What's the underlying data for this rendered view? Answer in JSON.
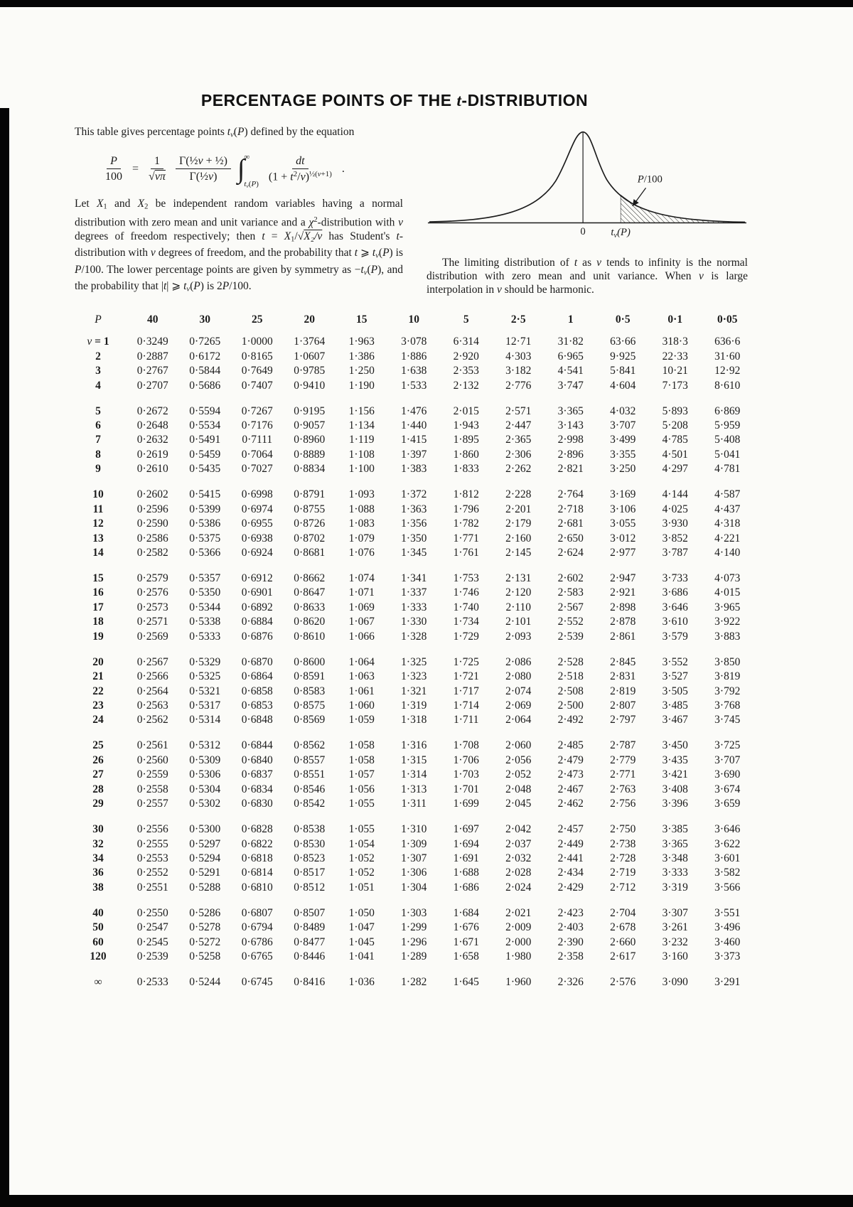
{
  "title": {
    "prefix": "PERCENTAGE POINTS OF THE ",
    "t_italic": "t",
    "suffix": "-DISTRIBUTION"
  },
  "intro": {
    "lead": [
      {
        "t": "This table gives percentage points "
      },
      {
        "t": "t",
        "s": "i"
      },
      {
        "t": "ν",
        "s": "sub i"
      },
      {
        "t": "("
      },
      {
        "t": "P",
        "s": "i"
      },
      {
        "t": ") defined by the equation"
      }
    ],
    "body": [
      {
        "t": "Let "
      },
      {
        "t": "X",
        "s": "i"
      },
      {
        "t": "1",
        "s": "sub"
      },
      {
        "t": " and "
      },
      {
        "t": "X",
        "s": "i"
      },
      {
        "t": "2",
        "s": "sub"
      },
      {
        "t": " be independent random variables having a normal distribution with zero mean and unit variance and a "
      },
      {
        "t": "χ",
        "s": "i"
      },
      {
        "t": "2",
        "s": "sup"
      },
      {
        "t": "-distribution with "
      },
      {
        "t": "ν",
        "s": "i"
      },
      {
        "t": " degrees of freedom respectively; then "
      },
      {
        "t": "t",
        "s": "i"
      },
      {
        "t": " = "
      },
      {
        "t": "X",
        "s": "i"
      },
      {
        "t": "1",
        "s": "sub"
      },
      {
        "t": "/√"
      },
      {
        "t": "X₂/ν",
        "s": "ol i"
      },
      {
        "t": " has Student's "
      },
      {
        "t": "t",
        "s": "i"
      },
      {
        "t": "-distribution with "
      },
      {
        "t": "ν",
        "s": "i"
      },
      {
        "t": " degrees of freedom, and the probability that "
      },
      {
        "t": "t",
        "s": "i"
      },
      {
        "t": " ⩾ "
      },
      {
        "t": "t",
        "s": "i"
      },
      {
        "t": "ν",
        "s": "sub i"
      },
      {
        "t": "("
      },
      {
        "t": "P",
        "s": "i"
      },
      {
        "t": ") is "
      },
      {
        "t": "P",
        "s": "i"
      },
      {
        "t": "/100. The lower percentage points are given by symmetry as −"
      },
      {
        "t": "t",
        "s": "i"
      },
      {
        "t": "ν",
        "s": "sub i"
      },
      {
        "t": "("
      },
      {
        "t": "P",
        "s": "i"
      },
      {
        "t": "), and the probability that |"
      },
      {
        "t": "t",
        "s": "i"
      },
      {
        "t": "| ⩾ "
      },
      {
        "t": "t",
        "s": "i"
      },
      {
        "t": "ν",
        "s": "sub i"
      },
      {
        "t": "("
      },
      {
        "t": "P",
        "s": "i"
      },
      {
        "t": ") is 2"
      },
      {
        "t": "P",
        "s": "i"
      },
      {
        "t": "/100."
      }
    ]
  },
  "formula": {
    "lhs_num": "P",
    "lhs_den": "100",
    "eq": "=",
    "f1_num": "1",
    "f1_den": [
      {
        "t": "√"
      },
      {
        "t": "νπ",
        "s": "ol i"
      }
    ],
    "f2_num": [
      {
        "t": "Γ(½"
      },
      {
        "t": "ν",
        "s": "i"
      },
      {
        "t": " + ½)"
      }
    ],
    "f2_den": [
      {
        "t": "Γ(½"
      },
      {
        "t": "ν",
        "s": "i"
      },
      {
        "t": ")"
      }
    ],
    "int_sup": "∞",
    "int_sub": [
      {
        "t": "t",
        "s": "i"
      },
      {
        "t": "ν",
        "s": "sub i"
      },
      {
        "t": "("
      },
      {
        "t": "P",
        "s": "i"
      },
      {
        "t": ")"
      }
    ],
    "f3_num": [
      {
        "t": "dt",
        "s": "i"
      }
    ],
    "f3_den": [
      {
        "t": "(1 + "
      },
      {
        "t": "t",
        "s": "i"
      },
      {
        "t": "2",
        "s": "sup"
      },
      {
        "t": "/"
      },
      {
        "t": "ν",
        "s": "i"
      },
      {
        "t": ")"
      },
      {
        "t": "½(",
        "s": "sup"
      },
      {
        "t": "ν",
        "s": "sup i"
      },
      {
        "t": "+1)",
        "s": "sup"
      }
    ],
    "period": "."
  },
  "right": {
    "para": [
      {
        "t": "The limiting distribution of "
      },
      {
        "t": "t",
        "s": "i"
      },
      {
        "t": " as "
      },
      {
        "t": "ν",
        "s": "i"
      },
      {
        "t": " tends to infinity is the normal distribution with zero mean and unit variance. When "
      },
      {
        "t": "ν",
        "s": "i"
      },
      {
        "t": " is large interpolation in "
      },
      {
        "t": "ν",
        "s": "i"
      },
      {
        "t": " should be harmonic."
      }
    ]
  },
  "diagram": {
    "zero": "0",
    "t_main": "t",
    "t_sub": "ν",
    "t_rest": "(P)",
    "p_main": "P",
    "p_rest": "/100"
  },
  "table": {
    "p_label": "P",
    "nu_symbol": "ν",
    "nu_equals": " = ",
    "columns": [
      "40",
      "30",
      "25",
      "20",
      "15",
      "10",
      "5",
      "2·5",
      "1",
      "0·5",
      "0·1",
      "0·05"
    ],
    "groups": [
      [
        {
          "nu": "1",
          "v": [
            "0·3249",
            "0·7265",
            "1·0000",
            "1·3764",
            "1·963",
            "3·078",
            "6·314",
            "12·71",
            "31·82",
            "63·66",
            "318·3",
            "636·6"
          ]
        },
        {
          "nu": "2",
          "v": [
            "0·2887",
            "0·6172",
            "0·8165",
            "1·0607",
            "1·386",
            "1·886",
            "2·920",
            "4·303",
            "6·965",
            "9·925",
            "22·33",
            "31·60"
          ]
        },
        {
          "nu": "3",
          "v": [
            "0·2767",
            "0·5844",
            "0·7649",
            "0·9785",
            "1·250",
            "1·638",
            "2·353",
            "3·182",
            "4·541",
            "5·841",
            "10·21",
            "12·92"
          ]
        },
        {
          "nu": "4",
          "v": [
            "0·2707",
            "0·5686",
            "0·7407",
            "0·9410",
            "1·190",
            "1·533",
            "2·132",
            "2·776",
            "3·747",
            "4·604",
            "7·173",
            "8·610"
          ]
        }
      ],
      [
        {
          "nu": "5",
          "v": [
            "0·2672",
            "0·5594",
            "0·7267",
            "0·9195",
            "1·156",
            "1·476",
            "2·015",
            "2·571",
            "3·365",
            "4·032",
            "5·893",
            "6·869"
          ]
        },
        {
          "nu": "6",
          "v": [
            "0·2648",
            "0·5534",
            "0·7176",
            "0·9057",
            "1·134",
            "1·440",
            "1·943",
            "2·447",
            "3·143",
            "3·707",
            "5·208",
            "5·959"
          ]
        },
        {
          "nu": "7",
          "v": [
            "0·2632",
            "0·5491",
            "0·7111",
            "0·8960",
            "1·119",
            "1·415",
            "1·895",
            "2·365",
            "2·998",
            "3·499",
            "4·785",
            "5·408"
          ]
        },
        {
          "nu": "8",
          "v": [
            "0·2619",
            "0·5459",
            "0·7064",
            "0·8889",
            "1·108",
            "1·397",
            "1·860",
            "2·306",
            "2·896",
            "3·355",
            "4·501",
            "5·041"
          ]
        },
        {
          "nu": "9",
          "v": [
            "0·2610",
            "0·5435",
            "0·7027",
            "0·8834",
            "1·100",
            "1·383",
            "1·833",
            "2·262",
            "2·821",
            "3·250",
            "4·297",
            "4·781"
          ]
        }
      ],
      [
        {
          "nu": "10",
          "v": [
            "0·2602",
            "0·5415",
            "0·6998",
            "0·8791",
            "1·093",
            "1·372",
            "1·812",
            "2·228",
            "2·764",
            "3·169",
            "4·144",
            "4·587"
          ]
        },
        {
          "nu": "11",
          "v": [
            "0·2596",
            "0·5399",
            "0·6974",
            "0·8755",
            "1·088",
            "1·363",
            "1·796",
            "2·201",
            "2·718",
            "3·106",
            "4·025",
            "4·437"
          ]
        },
        {
          "nu": "12",
          "v": [
            "0·2590",
            "0·5386",
            "0·6955",
            "0·8726",
            "1·083",
            "1·356",
            "1·782",
            "2·179",
            "2·681",
            "3·055",
            "3·930",
            "4·318"
          ]
        },
        {
          "nu": "13",
          "v": [
            "0·2586",
            "0·5375",
            "0·6938",
            "0·8702",
            "1·079",
            "1·350",
            "1·771",
            "2·160",
            "2·650",
            "3·012",
            "3·852",
            "4·221"
          ]
        },
        {
          "nu": "14",
          "v": [
            "0·2582",
            "0·5366",
            "0·6924",
            "0·8681",
            "1·076",
            "1·345",
            "1·761",
            "2·145",
            "2·624",
            "2·977",
            "3·787",
            "4·140"
          ]
        }
      ],
      [
        {
          "nu": "15",
          "v": [
            "0·2579",
            "0·5357",
            "0·6912",
            "0·8662",
            "1·074",
            "1·341",
            "1·753",
            "2·131",
            "2·602",
            "2·947",
            "3·733",
            "4·073"
          ]
        },
        {
          "nu": "16",
          "v": [
            "0·2576",
            "0·5350",
            "0·6901",
            "0·8647",
            "1·071",
            "1·337",
            "1·746",
            "2·120",
            "2·583",
            "2·921",
            "3·686",
            "4·015"
          ]
        },
        {
          "nu": "17",
          "v": [
            "0·2573",
            "0·5344",
            "0·6892",
            "0·8633",
            "1·069",
            "1·333",
            "1·740",
            "2·110",
            "2·567",
            "2·898",
            "3·646",
            "3·965"
          ]
        },
        {
          "nu": "18",
          "v": [
            "0·2571",
            "0·5338",
            "0·6884",
            "0·8620",
            "1·067",
            "1·330",
            "1·734",
            "2·101",
            "2·552",
            "2·878",
            "3·610",
            "3·922"
          ]
        },
        {
          "nu": "19",
          "v": [
            "0·2569",
            "0·5333",
            "0·6876",
            "0·8610",
            "1·066",
            "1·328",
            "1·729",
            "2·093",
            "2·539",
            "2·861",
            "3·579",
            "3·883"
          ]
        }
      ],
      [
        {
          "nu": "20",
          "v": [
            "0·2567",
            "0·5329",
            "0·6870",
            "0·8600",
            "1·064",
            "1·325",
            "1·725",
            "2·086",
            "2·528",
            "2·845",
            "3·552",
            "3·850"
          ]
        },
        {
          "nu": "21",
          "v": [
            "0·2566",
            "0·5325",
            "0·6864",
            "0·8591",
            "1·063",
            "1·323",
            "1·721",
            "2·080",
            "2·518",
            "2·831",
            "3·527",
            "3·819"
          ]
        },
        {
          "nu": "22",
          "v": [
            "0·2564",
            "0·5321",
            "0·6858",
            "0·8583",
            "1·061",
            "1·321",
            "1·717",
            "2·074",
            "2·508",
            "2·819",
            "3·505",
            "3·792"
          ]
        },
        {
          "nu": "23",
          "v": [
            "0·2563",
            "0·5317",
            "0·6853",
            "0·8575",
            "1·060",
            "1·319",
            "1·714",
            "2·069",
            "2·500",
            "2·807",
            "3·485",
            "3·768"
          ]
        },
        {
          "nu": "24",
          "v": [
            "0·2562",
            "0·5314",
            "0·6848",
            "0·8569",
            "1·059",
            "1·318",
            "1·711",
            "2·064",
            "2·492",
            "2·797",
            "3·467",
            "3·745"
          ]
        }
      ],
      [
        {
          "nu": "25",
          "v": [
            "0·2561",
            "0·5312",
            "0·6844",
            "0·8562",
            "1·058",
            "1·316",
            "1·708",
            "2·060",
            "2·485",
            "2·787",
            "3·450",
            "3·725"
          ]
        },
        {
          "nu": "26",
          "v": [
            "0·2560",
            "0·5309",
            "0·6840",
            "0·8557",
            "1·058",
            "1·315",
            "1·706",
            "2·056",
            "2·479",
            "2·779",
            "3·435",
            "3·707"
          ]
        },
        {
          "nu": "27",
          "v": [
            "0·2559",
            "0·5306",
            "0·6837",
            "0·8551",
            "1·057",
            "1·314",
            "1·703",
            "2·052",
            "2·473",
            "2·771",
            "3·421",
            "3·690"
          ]
        },
        {
          "nu": "28",
          "v": [
            "0·2558",
            "0·5304",
            "0·6834",
            "0·8546",
            "1·056",
            "1·313",
            "1·701",
            "2·048",
            "2·467",
            "2·763",
            "3·408",
            "3·674"
          ]
        },
        {
          "nu": "29",
          "v": [
            "0·2557",
            "0·5302",
            "0·6830",
            "0·8542",
            "1·055",
            "1·311",
            "1·699",
            "2·045",
            "2·462",
            "2·756",
            "3·396",
            "3·659"
          ]
        }
      ],
      [
        {
          "nu": "30",
          "v": [
            "0·2556",
            "0·5300",
            "0·6828",
            "0·8538",
            "1·055",
            "1·310",
            "1·697",
            "2·042",
            "2·457",
            "2·750",
            "3·385",
            "3·646"
          ]
        },
        {
          "nu": "32",
          "v": [
            "0·2555",
            "0·5297",
            "0·6822",
            "0·8530",
            "1·054",
            "1·309",
            "1·694",
            "2·037",
            "2·449",
            "2·738",
            "3·365",
            "3·622"
          ]
        },
        {
          "nu": "34",
          "v": [
            "0·2553",
            "0·5294",
            "0·6818",
            "0·8523",
            "1·052",
            "1·307",
            "1·691",
            "2·032",
            "2·441",
            "2·728",
            "3·348",
            "3·601"
          ]
        },
        {
          "nu": "36",
          "v": [
            "0·2552",
            "0·5291",
            "0·6814",
            "0·8517",
            "1·052",
            "1·306",
            "1·688",
            "2·028",
            "2·434",
            "2·719",
            "3·333",
            "3·582"
          ]
        },
        {
          "nu": "38",
          "v": [
            "0·2551",
            "0·5288",
            "0·6810",
            "0·8512",
            "1·051",
            "1·304",
            "1·686",
            "2·024",
            "2·429",
            "2·712",
            "3·319",
            "3·566"
          ]
        }
      ],
      [
        {
          "nu": "40",
          "v": [
            "0·2550",
            "0·5286",
            "0·6807",
            "0·8507",
            "1·050",
            "1·303",
            "1·684",
            "2·021",
            "2·423",
            "2·704",
            "3·307",
            "3·551"
          ]
        },
        {
          "nu": "50",
          "v": [
            "0·2547",
            "0·5278",
            "0·6794",
            "0·8489",
            "1·047",
            "1·299",
            "1·676",
            "2·009",
            "2·403",
            "2·678",
            "3·261",
            "3·496"
          ]
        },
        {
          "nu": "60",
          "v": [
            "0·2545",
            "0·5272",
            "0·6786",
            "0·8477",
            "1·045",
            "1·296",
            "1·671",
            "2·000",
            "2·390",
            "2·660",
            "3·232",
            "3·460"
          ]
        },
        {
          "nu": "120",
          "v": [
            "0·2539",
            "0·5258",
            "0·6765",
            "0·8446",
            "1·041",
            "1·289",
            "1·658",
            "1·980",
            "2·358",
            "2·617",
            "3·160",
            "3·373"
          ]
        }
      ],
      [
        {
          "nu": "∞",
          "v": [
            "0·2533",
            "0·5244",
            "0·6745",
            "0·8416",
            "1·036",
            "1·282",
            "1·645",
            "1·960",
            "2·326",
            "2·576",
            "3·090",
            "3·291"
          ]
        }
      ]
    ]
  }
}
